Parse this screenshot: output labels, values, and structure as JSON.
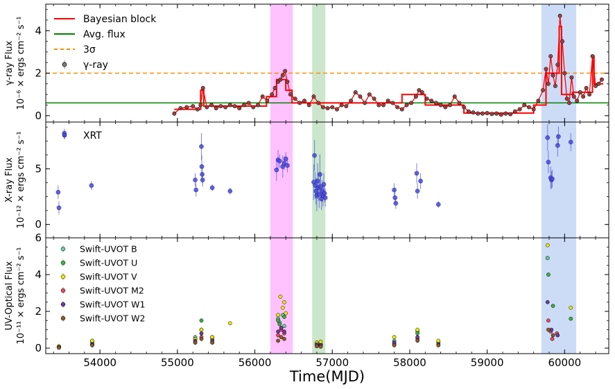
{
  "chart_data": {
    "type": "scatter",
    "x_axis": {
      "label": "Time(MJD)",
      "range": [
        53300,
        60570
      ],
      "ticks": [
        54000,
        55000,
        56000,
        57000,
        58000,
        59000,
        60000
      ],
      "tick_labels": [
        "54000",
        "55000",
        "56000",
        "57000",
        "58000",
        "59000",
        "60000"
      ]
    },
    "shaded_intervals": [
      {
        "start": 56200,
        "end": 56490,
        "color": "#ff99ff"
      },
      {
        "start": 56740,
        "end": 56910,
        "color": "#a8d5a8"
      },
      {
        "start": 59700,
        "end": 60150,
        "color": "#aac4f2"
      }
    ],
    "panels": [
      {
        "ylabel_line1": "γ-ray Flux",
        "ylabel_line2": "10⁻⁶ × ergs cm⁻² s⁻¹",
        "ylim": [
          -0.3,
          5.25
        ],
        "yticks": [
          0,
          2,
          4
        ],
        "ytick_labels": [
          "0",
          "2",
          "4"
        ],
        "legend": [
          {
            "label": "Bayesian block",
            "style": "line",
            "color": "#ff0000"
          },
          {
            "label": "Avg. flux",
            "style": "line",
            "color": "#008000"
          },
          {
            "label": "3σ",
            "style": "dashed",
            "color": "#ff8c00"
          },
          {
            "label": "γ-ray",
            "style": "marker",
            "color": "#808080"
          }
        ],
        "avg_flux": 0.6,
        "three_sigma": 2.0,
        "series": {
          "name": "γ-ray",
          "x": [
            54960,
            55040,
            55120,
            55200,
            55260,
            55300,
            55330,
            55380,
            55440,
            55500,
            55560,
            55620,
            55680,
            55740,
            55800,
            55860,
            55920,
            55980,
            56040,
            56100,
            56160,
            56220,
            56260,
            56300,
            56330,
            56360,
            56390,
            56420,
            56460,
            56520,
            56580,
            56640,
            56700,
            56760,
            56820,
            56880,
            56940,
            57000,
            57060,
            57120,
            57180,
            57240,
            57300,
            57360,
            57420,
            57480,
            57540,
            57600,
            57660,
            57720,
            57780,
            57840,
            57900,
            57960,
            58020,
            58080,
            58120,
            58160,
            58220,
            58280,
            58340,
            58400,
            58460,
            58520,
            58580,
            58640,
            58700,
            58760,
            58820,
            58880,
            58940,
            59000,
            59060,
            59120,
            59180,
            59240,
            59300,
            59360,
            59420,
            59480,
            59540,
            59600,
            59660,
            59720,
            59760,
            59790,
            59820,
            59850,
            59880,
            59910,
            59940,
            59970,
            60000,
            60030,
            60060,
            60090,
            60120,
            60160,
            60200,
            60240,
            60280,
            60320,
            60360,
            60400,
            60440,
            60480
          ],
          "y": [
            0.1,
            0.35,
            0.4,
            0.45,
            0.3,
            0.5,
            1.3,
            0.4,
            0.5,
            0.35,
            0.45,
            0.4,
            0.5,
            0.45,
            0.35,
            0.5,
            0.6,
            0.4,
            0.5,
            0.9,
            0.7,
            1.0,
            1.3,
            1.6,
            1.7,
            1.9,
            2.1,
            1.6,
            1.0,
            0.8,
            0.6,
            0.7,
            0.5,
            0.9,
            0.6,
            0.4,
            0.35,
            0.4,
            0.3,
            0.5,
            0.45,
            0.7,
            1.1,
            0.9,
            0.6,
            1.0,
            0.8,
            0.5,
            0.5,
            0.7,
            0.6,
            0.4,
            0.3,
            0.5,
            0.6,
            0.9,
            1.2,
            1.1,
            0.8,
            0.7,
            0.6,
            0.5,
            0.4,
            0.5,
            0.9,
            0.6,
            0.4,
            0.2,
            0.15,
            0.1,
            0.1,
            0.12,
            0.08,
            0.1,
            0.05,
            0.1,
            0.07,
            0.2,
            0.3,
            0.5,
            0.4,
            0.3,
            0.7,
            1.2,
            2.2,
            1.5,
            2.8,
            1.9,
            1.4,
            2.4,
            4.7,
            3.5,
            2.0,
            0.8,
            0.6,
            1.8,
            0.9,
            0.7,
            1.1,
            0.9,
            1.3,
            1.0,
            2.8,
            1.4,
            1.5,
            1.7
          ]
        },
        "bayesian_blocks": [
          {
            "x0": 54960,
            "x1": 55300,
            "y": 0.3
          },
          {
            "x0": 55300,
            "x1": 55340,
            "y": 1.2
          },
          {
            "x0": 55340,
            "x1": 56150,
            "y": 0.45
          },
          {
            "x0": 56150,
            "x1": 56280,
            "y": 0.9
          },
          {
            "x0": 56280,
            "x1": 56400,
            "y": 1.7
          },
          {
            "x0": 56400,
            "x1": 56480,
            "y": 1.2
          },
          {
            "x0": 56480,
            "x1": 57000,
            "y": 0.6
          },
          {
            "x0": 57000,
            "x1": 57900,
            "y": 0.6
          },
          {
            "x0": 57900,
            "x1": 58200,
            "y": 1.0
          },
          {
            "x0": 58200,
            "x1": 58700,
            "y": 0.5
          },
          {
            "x0": 58700,
            "x1": 59600,
            "y": 0.12
          },
          {
            "x0": 59600,
            "x1": 59760,
            "y": 0.5
          },
          {
            "x0": 59760,
            "x1": 59930,
            "y": 2.0
          },
          {
            "x0": 59930,
            "x1": 59960,
            "y": 4.2
          },
          {
            "x0": 59960,
            "x1": 60100,
            "y": 1.0
          },
          {
            "x0": 60100,
            "x1": 60360,
            "y": 1.1
          },
          {
            "x0": 60360,
            "x1": 60380,
            "y": 2.8
          },
          {
            "x0": 60380,
            "x1": 60500,
            "y": 1.5
          }
        ]
      },
      {
        "ylabel_line1": "X-ray Flux",
        "ylabel_line2": "10⁻¹² × ergs cm⁻² s⁻¹",
        "ylim": [
          -1.2,
          9.2
        ],
        "yticks": [
          0,
          5
        ],
        "ytick_labels": [
          "0",
          "5"
        ],
        "legend": [
          {
            "label": "XRT",
            "style": "marker",
            "color": "#4b4bd8"
          }
        ],
        "series": {
          "name": "XRT",
          "color": "#4b4bd8",
          "x": [
            53460,
            53470,
            53540,
            53890,
            55230,
            55240,
            55310,
            55315,
            55320,
            55325,
            55450,
            55680,
            56280,
            56300,
            56320,
            56360,
            56380,
            56400,
            56420,
            56760,
            56770,
            56780,
            56790,
            56800,
            56810,
            56820,
            56830,
            56840,
            56850,
            56860,
            56870,
            56880,
            56890,
            56900,
            56910,
            57800,
            57810,
            57820,
            58090,
            58100,
            58140,
            58370,
            59780,
            59790,
            59820,
            59830,
            59840,
            59910,
            59920,
            60080
          ],
          "y": [
            2.9,
            1.5,
            8.2,
            3.5,
            4.0,
            3.1,
            7.0,
            5.2,
            4.5,
            4.0,
            3.3,
            3.0,
            4.9,
            5.8,
            5.7,
            5.2,
            5.5,
            5.9,
            5.3,
            3.8,
            6.2,
            3.5,
            3.0,
            2.6,
            3.9,
            3.3,
            2.7,
            4.5,
            3.4,
            2.3,
            3.0,
            2.6,
            3.6,
            2.8,
            2.4,
            3.1,
            2.4,
            1.9,
            4.6,
            3.0,
            3.9,
            1.8,
            7.8,
            5.6,
            4.2,
            4.0,
            4.1,
            7.1,
            7.9,
            7.4
          ],
          "err": [
            0.6,
            0.6,
            0.4,
            0.4,
            0.6,
            0.6,
            1.2,
            1.0,
            0.8,
            0.6,
            0.3,
            0.3,
            1.0,
            0.9,
            0.6,
            1.0,
            0.6,
            0.6,
            0.6,
            1.6,
            1.4,
            1.2,
            1.2,
            1.4,
            1.6,
            1.2,
            1.2,
            1.8,
            1.3,
            1.0,
            1.0,
            1.0,
            1.0,
            0.8,
            0.8,
            0.6,
            0.5,
            0.5,
            0.9,
            0.7,
            0.7,
            0.3,
            1.2,
            1.0,
            1.0,
            0.8,
            0.8,
            1.0,
            0.9,
            0.8
          ]
        }
      },
      {
        "ylabel_line1": "UV-Optical Flux",
        "ylabel_line2": "10⁻¹¹ × ergs cm⁻² s⁻¹",
        "ylim": [
          -0.3,
          6.0
        ],
        "yticks": [
          0,
          2,
          4,
          6
        ],
        "ytick_labels": [
          "0",
          "2",
          "4",
          "6"
        ],
        "legend": [
          {
            "label": "Swift-UVOT B",
            "style": "marker",
            "color": "#66cdaa"
          },
          {
            "label": "Swift-UVOT U",
            "style": "marker",
            "color": "#3cb043"
          },
          {
            "label": "Swift-UVOT V",
            "style": "marker",
            "color": "#e8e800"
          },
          {
            "label": "Swift-UVOT M2",
            "style": "marker",
            "color": "#e84a5f"
          },
          {
            "label": "Swift-UVOT W1",
            "style": "marker",
            "color": "#6a3d9a"
          },
          {
            "label": "Swift-UVOT W2",
            "style": "marker",
            "color": "#8b5a2b"
          }
        ],
        "series": [
          {
            "name": "Swift-UVOT B",
            "color": "#66cdaa",
            "x": [
              53470,
              53900,
              55230,
              55310,
              55450,
              56300,
              56320,
              56360,
              56380,
              56800,
              56850,
              57800,
              58100,
              59780,
              59780
            ],
            "y": [
              0.1,
              0.4,
              0.6,
              1.0,
              0.6,
              1.6,
              1.4,
              1.8,
              1.2,
              0.3,
              0.2,
              0.4,
              0.9,
              4.9,
              4.9
            ]
          },
          {
            "name": "Swift-UVOT U",
            "color": "#3cb043",
            "x": [
              53470,
              53900,
              55230,
              55310,
              55450,
              56300,
              56320,
              56380,
              56800,
              56850,
              57800,
              58100,
              58370,
              59790,
              59850,
              60080
            ],
            "y": [
              0.05,
              0.3,
              0.5,
              1.5,
              0.5,
              1.5,
              1.3,
              1.7,
              0.25,
              0.2,
              0.3,
              0.8,
              0.3,
              4.0,
              2.3,
              1.6
            ]
          },
          {
            "name": "Swift-UVOT V",
            "color": "#e8e800",
            "x": [
              53470,
              53900,
              55230,
              55310,
              55450,
              55680,
              56300,
              56330,
              56360,
              56380,
              56400,
              56800,
              56850,
              57800,
              58100,
              58370,
              59780,
              60080
            ],
            "y": [
              0.1,
              0.4,
              0.5,
              1.0,
              0.6,
              1.35,
              1.8,
              2.8,
              2.2,
              2.5,
              1.9,
              0.3,
              0.35,
              0.6,
              1.0,
              0.4,
              5.6,
              2.2
            ]
          },
          {
            "name": "Swift-UVOT M2",
            "color": "#e84a5f",
            "x": [
              53470,
              53900,
              55230,
              55310,
              55450,
              56300,
              56340,
              56380,
              56800,
              56850,
              57800,
              58100,
              59790,
              59820,
              59840,
              59900
            ],
            "y": [
              0.05,
              0.2,
              0.3,
              0.6,
              0.3,
              0.7,
              1.0,
              0.8,
              0.15,
              0.1,
              0.2,
              0.5,
              1.5,
              0.9,
              0.5,
              0.8
            ]
          },
          {
            "name": "Swift-UVOT W1",
            "color": "#6a3d9a",
            "x": [
              53470,
              53900,
              55230,
              55310,
              55450,
              56300,
              56340,
              56380,
              56800,
              56850,
              57800,
              58100,
              58370,
              59780,
              59830,
              59910
            ],
            "y": [
              0.05,
              0.2,
              0.4,
              0.8,
              0.4,
              0.9,
              1.1,
              0.9,
              0.2,
              0.15,
              0.3,
              0.6,
              0.2,
              2.5,
              1.0,
              0.7
            ]
          },
          {
            "name": "Swift-UVOT W2",
            "color": "#8b5a2b",
            "x": [
              53470,
              53900,
              55230,
              55310,
              55450,
              56300,
              56340,
              56380,
              56800,
              56850,
              57800,
              58100,
              58370,
              59790,
              59850
            ],
            "y": [
              0.02,
              0.15,
              0.3,
              0.5,
              0.3,
              0.4,
              0.6,
              0.5,
              0.1,
              0.08,
              0.15,
              0.4,
              0.15,
              1.0,
              0.7
            ]
          }
        ]
      }
    ]
  }
}
